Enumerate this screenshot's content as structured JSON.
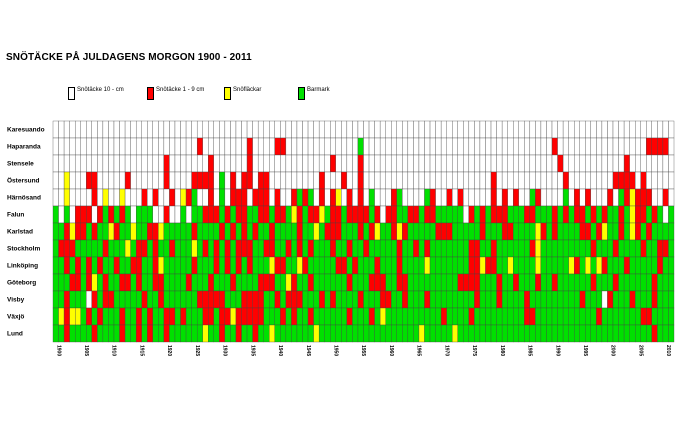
{
  "title": "SNÖTÄCKE PÅ JULDAGENS MORGON 1900 - 2011",
  "legend": [
    {
      "label": "Snötäcke 10 -  cm",
      "color": "#ffffff"
    },
    {
      "label": "Snötäcke  1 - 9 cm",
      "color": "#ff0000"
    },
    {
      "label": "Snöfläckar",
      "color": "#ffff00"
    },
    {
      "label": "Barmark",
      "color": "#00e000"
    }
  ],
  "chart_data": {
    "type": "heatmap",
    "title": "SNÖTÄCKE PÅ JULDAGENS MORGON 1900 - 2011",
    "start_year": 1900,
    "end_year": 2011,
    "x_tick_labels": [
      "1900",
      "1905",
      "1910",
      "1915",
      "1920",
      "1925",
      "1930",
      "1935",
      "1940",
      "1945",
      "1950",
      "1955",
      "1960",
      "1965",
      "1970",
      "1975",
      "1980",
      "1985",
      "1990",
      "1995",
      "2000",
      "2005",
      "2010"
    ],
    "categories_legend": {
      "W": "Snötäcke 10 -  cm",
      "R": "Snötäcke  1 - 9 cm",
      "Y": "Snöfläckar",
      "G": "Barmark"
    },
    "colors": {
      "W": "#ffffff",
      "R": "#ff0000",
      "Y": "#ffff00",
      "G": "#00e000"
    },
    "stations": [
      "Karesuando",
      "Haparanda",
      "Stensele",
      "Östersund",
      "Härnösand",
      "Falun",
      "Karlstad",
      "Stockholm",
      "Linköping",
      "Göteborg",
      "Visby",
      "Växjö",
      "Lund"
    ],
    "rows": [
      "WWWWWWWWWWWWWWWWWWWWWWWWWWWWWWWWWWWWWWWWWWWWWWWWWWWWWWWWWWWWWWWWWWWWWWWWWWWWWWWWWWWWWWWWWWWWWWWWWWWWWWWWWWWWWWWW",
      "WWWWWWWWWWWWWWWWWWWWWWWWWWRWWWWWWWWRWWWWRRWWWWWWWWWWWWWGWWWWWWWWWWWWWWWWWWWWWWWWWWWWWWWWWWRWWWWWWWWWWWWWWWWRRRRW",
      "WWWWWWWWWWWWWWWWWWWWRWWWWWWWRWWWWWWRWWWWWWWWWWWWWWRWWWWRWWWWWWWWWWWWWWWWWWWWWWWWWWWWWWWWWWWRWWWWWWWWWWWRWWWWWWWW",
      "WWYWWWRRWWWWWRWWWWWWRWWWWRRRRWGWRWRRWRRWWWWWWWWWRWWWRWWRWWWWWWWWWWWWWWWWWWWWWWWRWWWWWWWWWWWWRWWWWWWWWRRRRWRWWWWW",
      "WWYWWWWRWYWWYWWWRWRWWRWYRGWWRWGWRRRWRRRWRWWRGRGWRWRYWRWRWGWWWRGWWWWGRWWRWRWWWWWRWRWRWWGRWWWWGWRWRWWWRWGRYRRRWWRW",
      "GWGWRRRWRGRGRGWGGGWWRWWGWGGRRRGRGRRGGRRGRRGYRGRRYGRRGRRRRGRWRRGGRRGRRGGGGGWRGRGRRRGGGRRGGGRGRGRRGRGRGGRGYRRGRGWG",
      "GGRYRRGRGGYRGGYGGRRYGGGGGRGGGGRGRGRGRGGRGGGGRGGYGRRRGGGRGRYGGRYRGGGGGRRRGGGGGRGGGRRGGGGYRGRGGGGRRGRYGGRGYRGRGGGG",
      "GRRRGGGGGRGGGYGRRGRGGRGGGYGRGRGRGRRRGGRRGGRGRGRGGGRGGRGGRGGGGGRGGRGRGGGGGGGRRGGRGGGGGGRYGGGGGGGGGRGGGRGGGGRGGRRG",
      "GGRGRGRGRGGRGGRRGGRYGGGGGRGGGRGRGRGRGGGYRRGGYRGGGGGRRGRGGGRGGGRGGGGYGGGGGGGRRYRRGGYGGGGYGGGGGYRGYGYRGGGRGGGGGRGG",
      "GGGRRGRYGRGGRRGRGGRRGGGGRGGGRGGGRGGGGRRRGGYRGGRGGGGGGRGGGRRRGGRRGGGGGGGGGRRRRGGGRGGRGGGRGGRGGGGGGRGGGRGGGGGGRGGG",
      "GGRGGGWRGRRGGGGGRGGRGGGGGGRRRRRGGGRRRRGGRGRRRGGGRGRGGGGRGGGRRGGRGGGRGGGGGGGGRGGGRGGGGRGGGGGGGGGRGGGWRGGGRGGGRGGG",
      "GYRYYGRGRGGGRGGRGRGGRRGRGGGRRGRRYRRRRRGGGRGRGGRGGGGGGRGGGRGYGGGGGGGGGGRGGGGRGGGGGGGGGRRGGGGGGGGGGGRGGGGGGGRRGGGG",
      "GGRGGGGRGGGGRGGRGRGGRGGGGGGYGGRGGRGGRGGYGGGGGGGYGGGGGGGGGGGGGGGGGGYGGGGGYGGGGGGGGGGGGGGGGGGGGGGGGGGGGGGGGGGGRGGGG"
    ]
  }
}
